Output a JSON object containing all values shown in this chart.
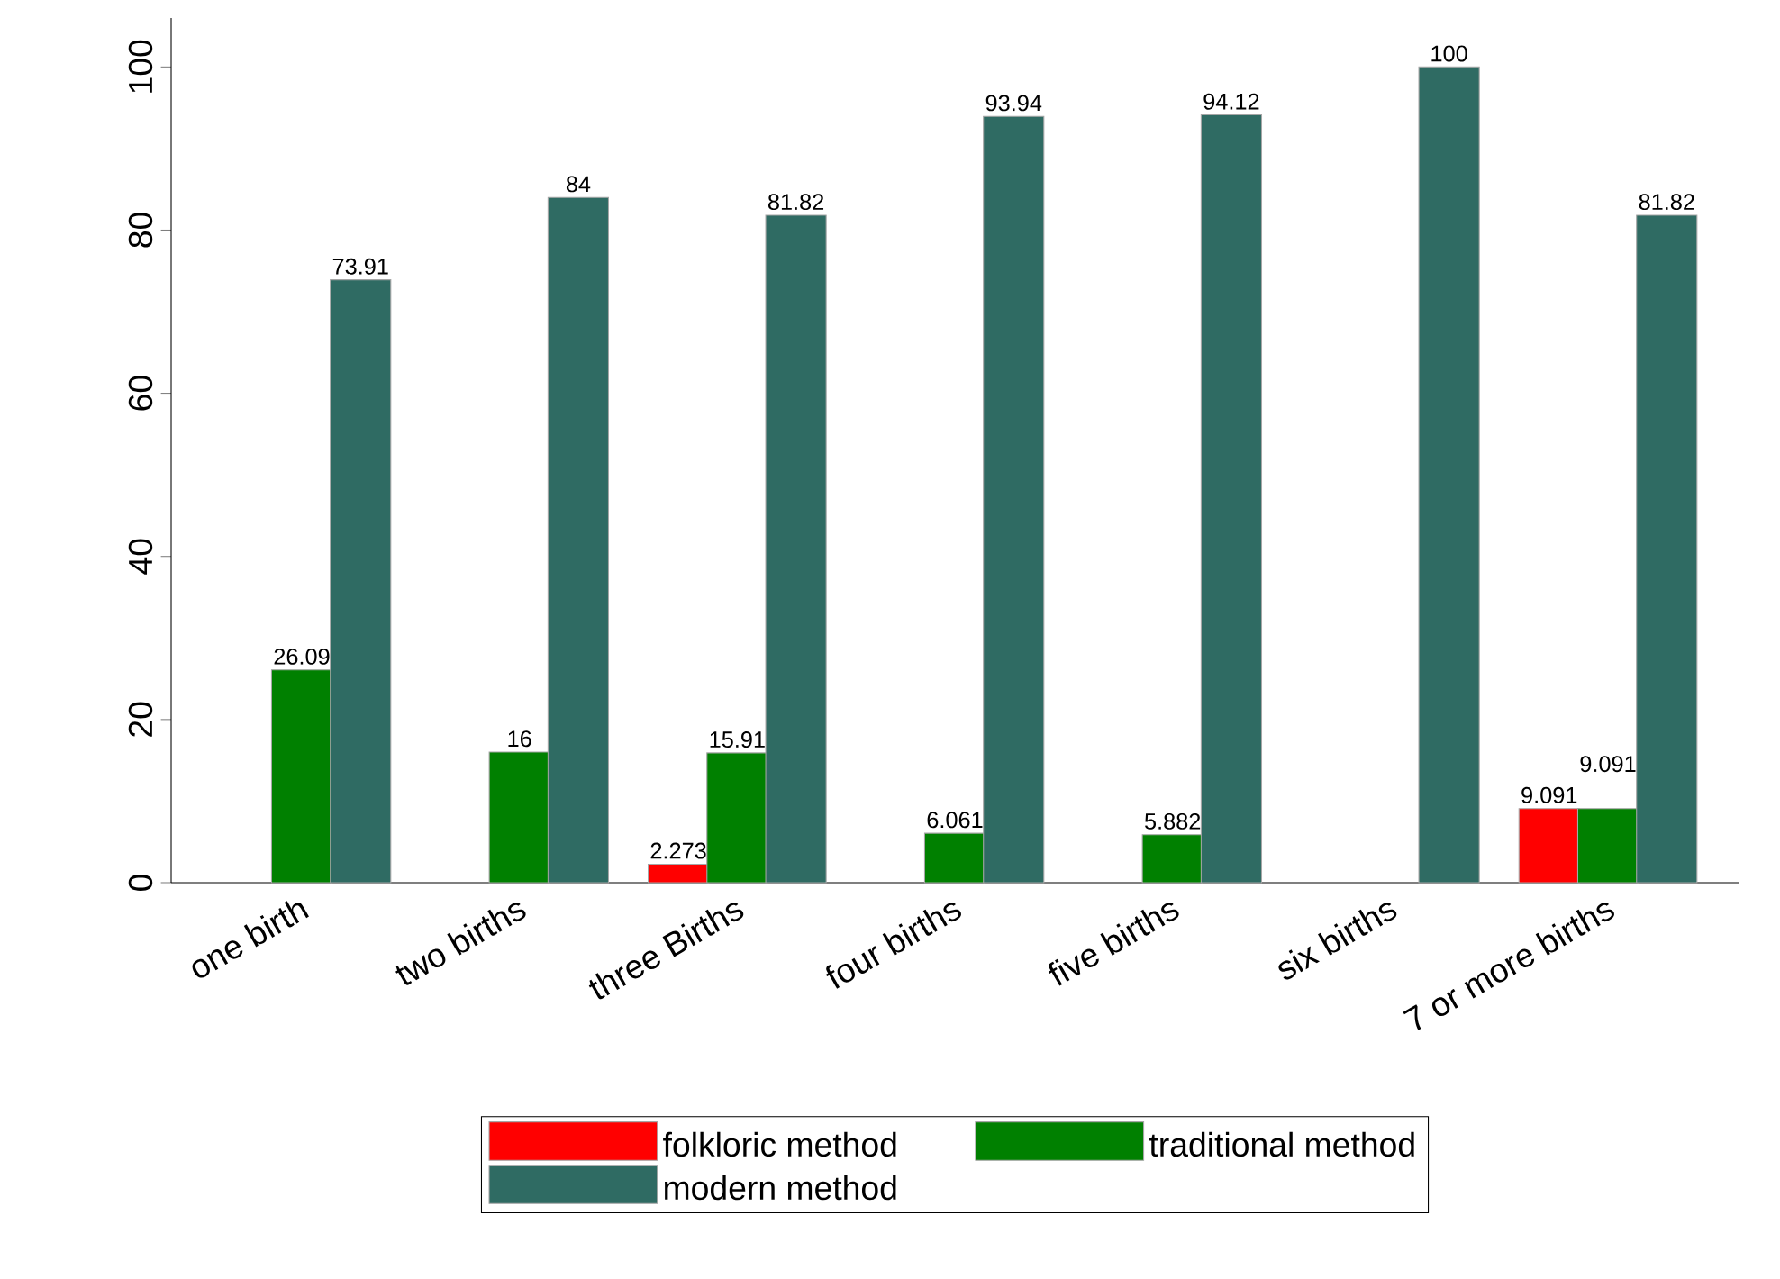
{
  "chart_data": {
    "type": "bar",
    "categories": [
      "one birth",
      "two births",
      "three Births",
      "four births",
      "five births",
      "six births",
      "7 or more births"
    ],
    "series": [
      {
        "name": "folkloric method",
        "color": "#ff0000",
        "values": [
          null,
          null,
          2.273,
          null,
          null,
          null,
          9.091
        ]
      },
      {
        "name": "traditional method",
        "color": "#008000",
        "values": [
          26.09,
          16,
          15.91,
          6.061,
          5.882,
          null,
          9.091
        ]
      },
      {
        "name": "modern method",
        "color": "#2f6b63",
        "values": [
          73.91,
          84,
          81.82,
          93.94,
          94.12,
          100,
          81.82
        ]
      }
    ],
    "ylim": [
      0,
      106
    ],
    "yticks": [
      0,
      20,
      40,
      60,
      80,
      100
    ],
    "data_labels": true,
    "grid": false,
    "legend": "bottom"
  }
}
